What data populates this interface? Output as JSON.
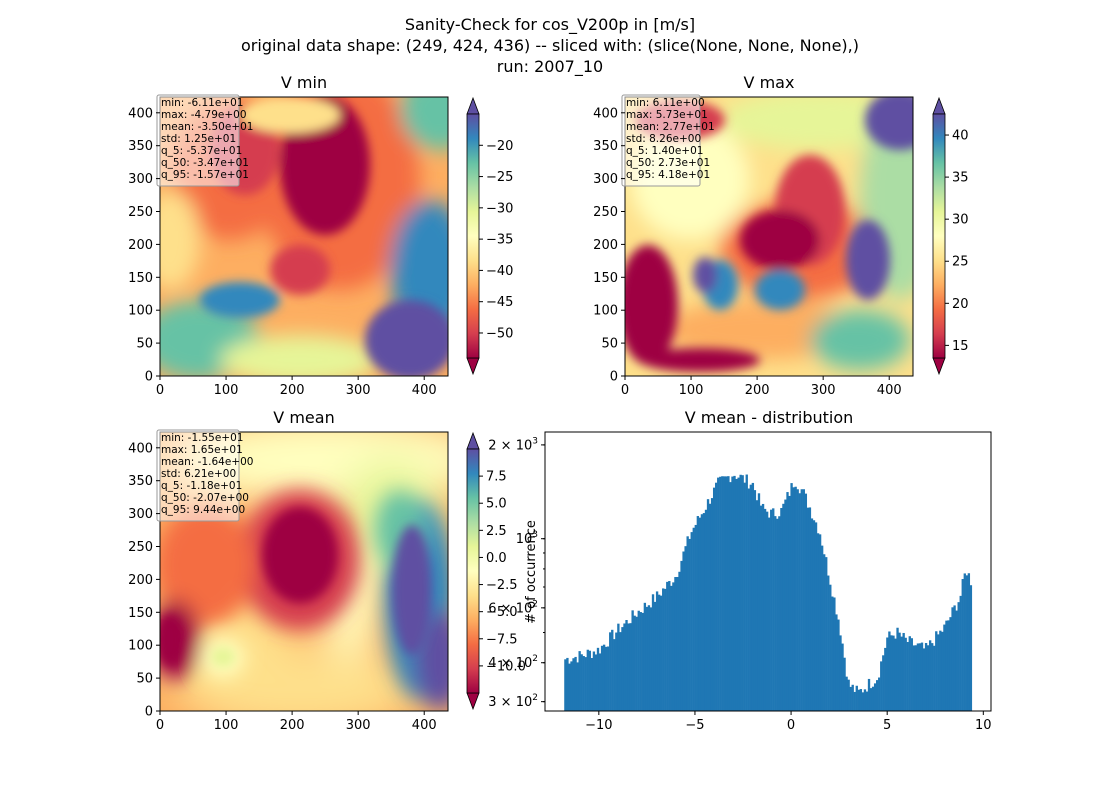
{
  "figure": {
    "title_lines": [
      "Sanity-Check for cos_V200p in [m/s]",
      "original data shape: (249, 424, 436) -- sliced with: (slice(None, None, None),)",
      "run: 2007_10"
    ]
  },
  "colormap": {
    "name": "Spectral",
    "stops": [
      "#9e0142",
      "#d53e4f",
      "#f46d43",
      "#fdae61",
      "#fee08b",
      "#ffffbf",
      "#e6f598",
      "#abdda4",
      "#66c2a5",
      "#3288bd",
      "#5e4fa2"
    ]
  },
  "chart_data": [
    {
      "type": "heatmap",
      "title": "V min",
      "xlim": [
        0,
        436
      ],
      "ylim": [
        0,
        424
      ],
      "xticks": [
        0,
        100,
        200,
        300,
        400
      ],
      "yticks": [
        0,
        50,
        100,
        150,
        200,
        250,
        300,
        350,
        400
      ],
      "colorbar": {
        "range": [
          -54,
          -15
        ],
        "ticks": [
          -50,
          -45,
          -40,
          -35,
          -30,
          -25,
          -20
        ],
        "tick_labels": [
          "−50",
          "−45",
          "−40",
          "−35",
          "−30",
          "−25",
          "−20"
        ],
        "extend": "both"
      },
      "stats": [
        "min: -6.11e+01",
        "max: -4.79e+00",
        "mean: -3.50e+01",
        "std: 1.25e+01",
        "q_5: -5.37e+01",
        "q_50: -3.47e+01",
        "q_95: -1.57e+01"
      ]
    },
    {
      "type": "heatmap",
      "title": "V max",
      "xlim": [
        0,
        436
      ],
      "ylim": [
        0,
        424
      ],
      "xticks": [
        0,
        100,
        200,
        300,
        400
      ],
      "yticks": [
        0,
        50,
        100,
        150,
        200,
        250,
        300,
        350,
        400
      ],
      "colorbar": {
        "range": [
          13.5,
          42.5
        ],
        "ticks": [
          15,
          20,
          25,
          30,
          35,
          40
        ],
        "tick_labels": [
          "15",
          "20",
          "25",
          "30",
          "35",
          "40"
        ],
        "extend": "both"
      },
      "stats": [
        "min: 6.11e+00",
        "max: 5.73e+01",
        "mean: 2.77e+01",
        "std: 8.26e+00",
        "q_5: 1.40e+01",
        "q_50: 2.73e+01",
        "q_95: 4.18e+01"
      ]
    },
    {
      "type": "heatmap",
      "title": "V mean",
      "xlim": [
        0,
        436
      ],
      "ylim": [
        0,
        424
      ],
      "xticks": [
        0,
        100,
        200,
        300,
        400
      ],
      "yticks": [
        0,
        50,
        100,
        150,
        200,
        250,
        300,
        350,
        400
      ],
      "colorbar": {
        "range": [
          -12.5,
          10
        ],
        "ticks": [
          -10,
          -7.5,
          -5,
          -2.5,
          0,
          2.5,
          5,
          7.5
        ],
        "tick_labels": [
          "−10.0",
          "−7.5",
          "−5.0",
          "−2.5",
          "0.0",
          "2.5",
          "5.0",
          "7.5"
        ],
        "extend": "both"
      },
      "stats": [
        "min: -1.55e+01",
        "max: 1.65e+01",
        "mean: -1.64e+00",
        "std: 6.21e+00",
        "q_5: -1.18e+01",
        "q_50: -2.07e+00",
        "q_95: 9.44e+00"
      ]
    },
    {
      "type": "bar",
      "title": "V mean - distribution",
      "ylabel": "# of occurrence",
      "log_y": true,
      "xlim": [
        -12.8,
        10.4
      ],
      "ylim": [
        280,
        2200
      ],
      "bar_color": "#1f77b4",
      "xticks": [
        -10,
        -5,
        0,
        5,
        10
      ],
      "xtick_labels": [
        "−10",
        "−5",
        "0",
        "5",
        "10"
      ],
      "yticks_major": [
        300,
        400,
        600,
        1000,
        2000
      ],
      "ytick_labels": [
        {
          "base": "3 × 10",
          "exp": "2"
        },
        {
          "base": "4 × 10",
          "exp": "2"
        },
        {
          "base": "6 × 10",
          "exp": "2"
        },
        {
          "base": "10",
          "exp": "3"
        },
        {
          "base": "2 × 10",
          "exp": "3"
        }
      ],
      "bin_edges_range": [
        -11.8,
        9.4
      ],
      "profile_x": [
        -11.8,
        -11.0,
        -10.0,
        -9.0,
        -8.0,
        -7.0,
        -6.0,
        -5.2,
        -4.5,
        -3.8,
        -3.0,
        -2.0,
        -1.5,
        -1.0,
        -0.5,
        0.2,
        0.6,
        1.0,
        1.5,
        2.5,
        3.0,
        3.5,
        4.0,
        4.5,
        5.0,
        5.5,
        6.0,
        7.0,
        8.0,
        8.8,
        9.1,
        9.4
      ],
      "profile_y": [
        410,
        420,
        440,
        510,
        580,
        650,
        760,
        1050,
        1250,
        1500,
        1620,
        1500,
        1250,
        1200,
        1230,
        1550,
        1420,
        1250,
        1050,
        540,
        340,
        320,
        340,
        360,
        480,
        500,
        470,
        440,
        520,
        650,
        800,
        720
      ]
    }
  ]
}
